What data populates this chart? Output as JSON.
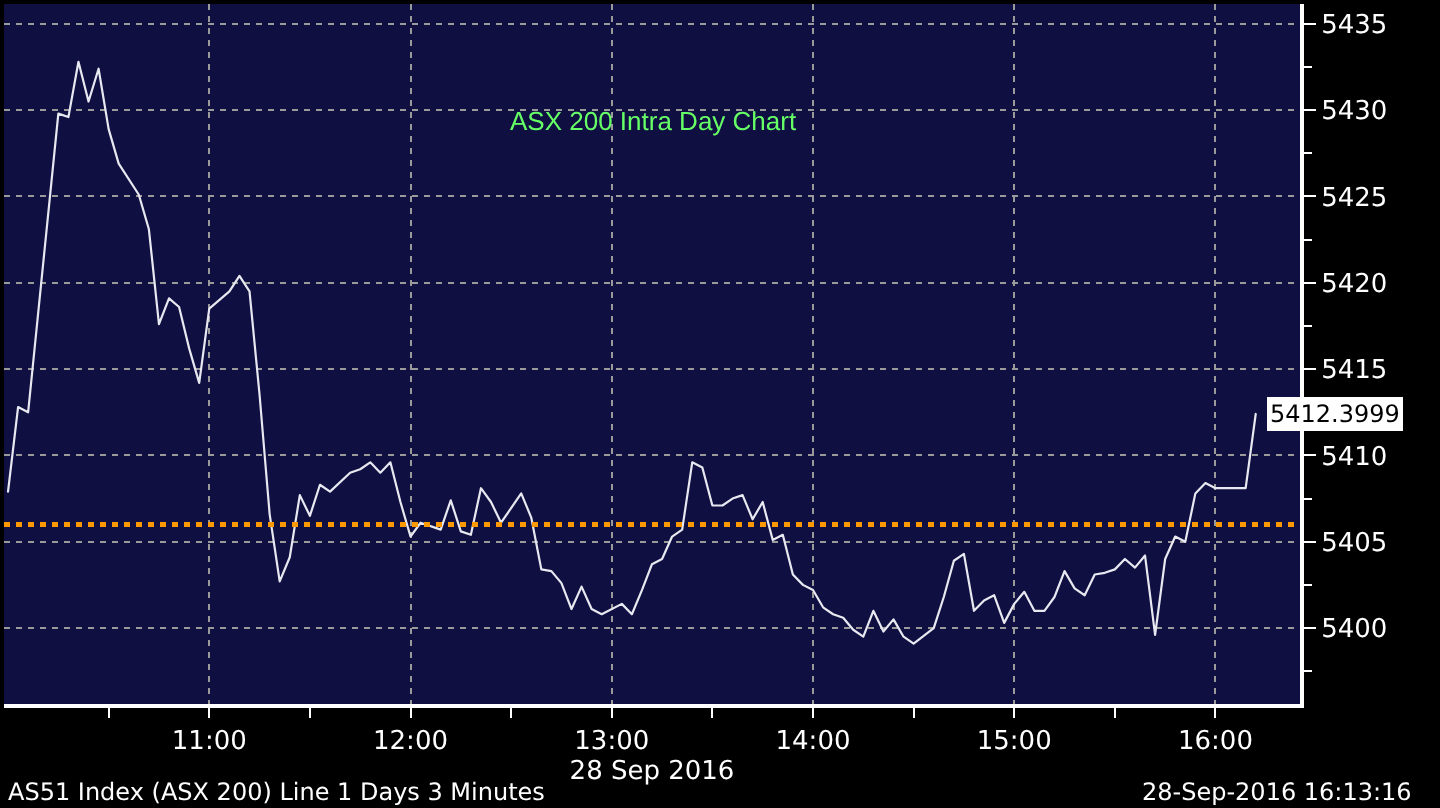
{
  "chart_data": {
    "type": "line",
    "title": "ASX 200 Intra Day Chart",
    "xlabel": "28 Sep 2016",
    "annotations": [
      "AS51 Index (ASX 200) Line 1 Days 3 Minutes",
      "28-Sep-2016 16:13:16"
    ],
    "x": [
      10.0,
      10.05,
      10.1,
      10.25,
      10.3,
      10.35,
      10.4,
      10.45,
      10.5,
      10.55,
      10.65,
      10.7,
      10.75,
      10.8,
      10.85,
      10.9,
      10.95,
      11.0,
      11.1,
      11.15,
      11.2,
      11.25,
      11.3,
      11.35,
      11.4,
      11.45,
      11.5,
      11.55,
      11.6,
      11.7,
      11.75,
      11.8,
      11.85,
      11.9,
      11.95,
      12.0,
      12.05,
      12.15,
      12.2,
      12.25,
      12.3,
      12.35,
      12.4,
      12.45,
      12.55,
      12.6,
      12.65,
      12.7,
      12.75,
      12.8,
      12.85,
      12.9,
      12.95,
      13.05,
      13.1,
      13.15,
      13.2,
      13.25,
      13.3,
      13.35,
      13.4,
      13.45,
      13.5,
      13.55,
      13.6,
      13.65,
      13.7,
      13.75,
      13.8,
      13.85,
      13.9,
      13.95,
      14.0,
      14.05,
      14.1,
      14.15,
      14.2,
      14.25,
      14.3,
      14.35,
      14.4,
      14.45,
      14.5,
      14.6,
      14.65,
      14.7,
      14.75,
      14.8,
      14.85,
      14.9,
      14.95,
      15.0,
      15.05,
      15.1,
      15.15,
      15.2,
      15.25,
      15.3,
      15.35,
      15.4,
      15.45,
      15.5,
      15.55,
      15.6,
      15.65,
      15.7,
      15.75,
      15.8,
      15.85,
      15.9,
      15.95,
      16.0,
      16.15,
      16.2
    ],
    "series": [
      {
        "color": "#e8e8f0",
        "values": [
          5407.9,
          5412.8,
          5412.5,
          5429.8,
          5429.6,
          5432.8,
          5430.5,
          5432.4,
          5428.9,
          5426.9,
          5425.1,
          5423.1,
          5417.6,
          5419.1,
          5418.6,
          5416.2,
          5414.2,
          5418.5,
          5419.5,
          5420.4,
          5419.5,
          5413.5,
          5406.6,
          5402.7,
          5404.1,
          5407.7,
          5406.5,
          5408.3,
          5407.9,
          5409.0,
          5409.2,
          5409.6,
          5409.0,
          5409.6,
          5407.3,
          5405.3,
          5406.1,
          5405.7,
          5407.4,
          5405.6,
          5405.4,
          5408.1,
          5407.3,
          5406.1,
          5407.8,
          5406.4,
          5403.4,
          5403.3,
          5402.6,
          5401.1,
          5402.4,
          5401.1,
          5400.8,
          5401.4,
          5400.8,
          5402.2,
          5403.7,
          5404.0,
          5405.3,
          5405.7,
          5409.6,
          5409.3,
          5407.1,
          5407.1,
          5407.5,
          5407.7,
          5406.3,
          5407.3,
          5405.1,
          5405.4,
          5403.1,
          5402.5,
          5402.2,
          5401.2,
          5400.8,
          5400.6,
          5399.9,
          5399.5,
          5401.0,
          5399.8,
          5400.5,
          5399.5,
          5399.1,
          5400.0,
          5401.8,
          5403.9,
          5404.3,
          5401.0,
          5401.6,
          5401.9,
          5400.3,
          5401.4,
          5402.1,
          5401.0,
          5401.0,
          5401.8,
          5403.3,
          5402.3,
          5401.9,
          5403.1,
          5403.2,
          5403.4,
          5404.0,
          5403.5,
          5404.2,
          5399.6,
          5404.0,
          5405.3,
          5405.0,
          5407.8,
          5408.4,
          5408.1,
          5408.1,
          5412.3999
        ],
        "value_labels": [
          null,
          null,
          null,
          null,
          null,
          null,
          null,
          null,
          null,
          null,
          null,
          null,
          null,
          null,
          null,
          null,
          null,
          null,
          null,
          null,
          null,
          null,
          null,
          null,
          null,
          null,
          null,
          null,
          null,
          null,
          null,
          null,
          null,
          null,
          null,
          null,
          null,
          null,
          null,
          null,
          null,
          null,
          null,
          null,
          null,
          null,
          null,
          null,
          null,
          null,
          null,
          null,
          null,
          null,
          null,
          null,
          null,
          null,
          null,
          null,
          null,
          null,
          null,
          null,
          null,
          null,
          null,
          null,
          null,
          null,
          null,
          null,
          null,
          null,
          null,
          null,
          null,
          null,
          null,
          null,
          null,
          null,
          null,
          null,
          null,
          null,
          null,
          null,
          null,
          null,
          null,
          null,
          null,
          null,
          null,
          null,
          null,
          null,
          null,
          null,
          null,
          null,
          null,
          null,
          null,
          null,
          null,
          null,
          null,
          null,
          null,
          null,
          null,
          "5412.3999"
        ]
      }
    ],
    "xlim": [
      9.98,
      16.42
    ],
    "xticks": [
      {
        "value": 10.5,
        "label": null
      },
      {
        "value": 11,
        "label": "11:00"
      },
      {
        "value": 11.5,
        "label": null
      },
      {
        "value": 12,
        "label": "12:00"
      },
      {
        "value": 12.5,
        "label": null
      },
      {
        "value": 13,
        "label": "13:00"
      },
      {
        "value": 13.5,
        "label": null
      },
      {
        "value": 14,
        "label": "14:00"
      },
      {
        "value": 14.5,
        "label": null
      },
      {
        "value": 15,
        "label": "15:00"
      },
      {
        "value": 15.5,
        "label": null
      },
      {
        "value": 16,
        "label": "16:00"
      }
    ],
    "ylim": [
      5395.6,
      5436.15
    ],
    "yticks": [
      {
        "value": 5397.5,
        "label": null
      },
      5400,
      {
        "value": 5402.5,
        "label": null
      },
      5405,
      {
        "value": 5407.5,
        "label": null
      },
      5410,
      {
        "value": 5412.5,
        "label": null
      },
      5415,
      {
        "value": 5417.5,
        "label": null
      },
      5420,
      {
        "value": 5422.5,
        "label": null
      },
      5425,
      {
        "value": 5427.5,
        "label": null
      },
      5430,
      {
        "value": 5432.5,
        "label": null
      },
      5435
    ],
    "ref_lines": [
      {
        "axis": "y",
        "value": 5406,
        "color": "#ff9900",
        "line_style": "dotted"
      }
    ],
    "grid": true,
    "marker": "none",
    "line_style": "solid"
  }
}
